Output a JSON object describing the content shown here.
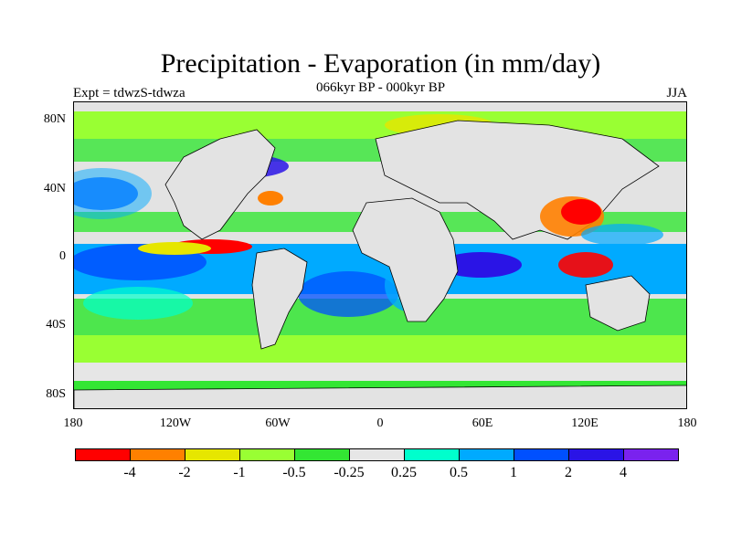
{
  "title": "Precipitation - Evaporation (in mm/day)",
  "subtitle": "066kyr BP - 000kyr BP",
  "left_string": "Expt = tdwzS-tdwza",
  "right_string": "JJA",
  "lat_labels": [
    "80N",
    "40N",
    "0",
    "40S",
    "80S"
  ],
  "lon_labels": [
    "180",
    "120W",
    "60W",
    "0",
    "60E",
    "120E",
    "180"
  ],
  "colorbar": {
    "colors": [
      "#ff0000",
      "#ff8000",
      "#e6e600",
      "#99ff33",
      "#33e633",
      "#e6e6e6",
      "#00ffcc",
      "#00aaff",
      "#0050ff",
      "#2a14e6",
      "#7a22ee"
    ],
    "labels": [
      "-4",
      "-2",
      "-1",
      "-0.5",
      "-0.25",
      "0.25",
      "0.5",
      "1",
      "2",
      "4"
    ]
  },
  "map": {
    "type": "filled-contour map",
    "projection": "cylindrical equidistant",
    "lon_range": [
      -180,
      180
    ],
    "lat_range": [
      -90,
      90
    ],
    "missing_color": "#e3e3e3",
    "coastline_color": "#000000"
  }
}
